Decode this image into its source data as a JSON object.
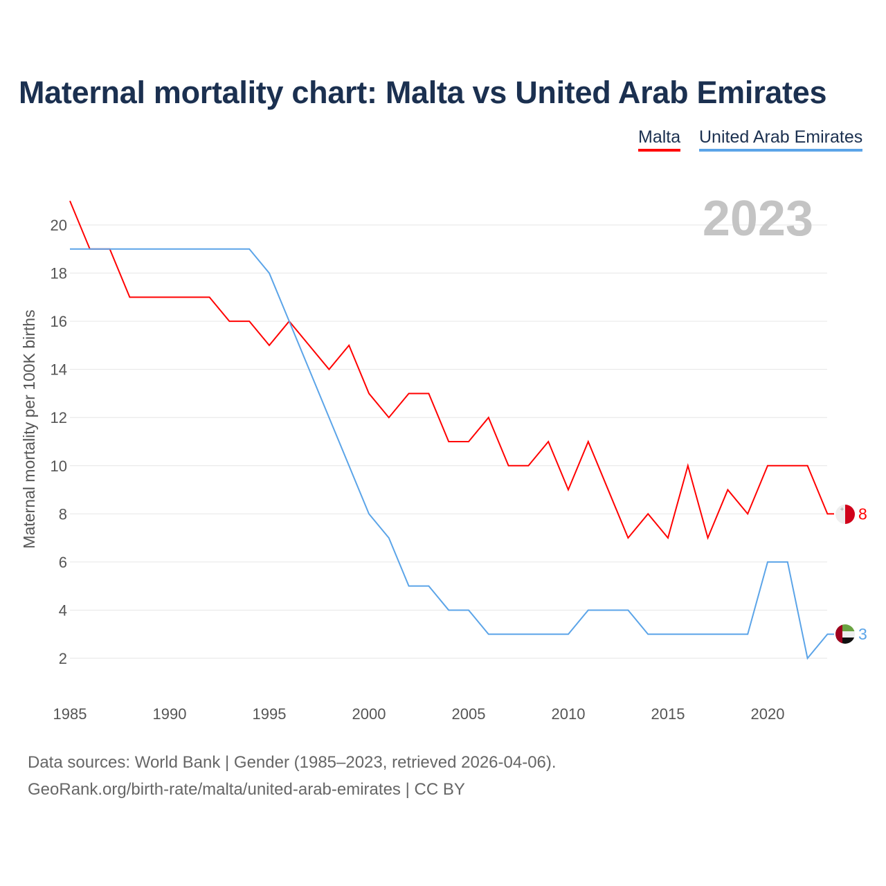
{
  "title": "Maternal mortality chart: Malta vs United Arab Emirates",
  "legend": [
    "Malta",
    "United Arab Emirates"
  ],
  "sources": {
    "line1": "Data sources: World Bank | Gender (1985–2023, retrieved 2026-04-06).",
    "line2": "GeoRank.org/birth-rate/malta/united-arab-emirates | CC BY"
  },
  "chart_data": {
    "type": "line",
    "title": "Maternal mortality chart: Malta vs United Arab Emirates",
    "year_label": "2023",
    "xlabel": "",
    "ylabel": "Maternal mortality per 100K births",
    "xlim": [
      1985,
      2023
    ],
    "ylim": [
      2,
      20
    ],
    "xticks": [
      1985,
      1990,
      1995,
      2000,
      2005,
      2010,
      2015,
      2020
    ],
    "yticks": [
      2,
      4,
      6,
      8,
      10,
      12,
      14,
      16,
      18,
      20
    ],
    "grid": true,
    "legend_position": "top-right",
    "x": [
      1985,
      1986,
      1987,
      1988,
      1989,
      1990,
      1991,
      1992,
      1993,
      1994,
      1995,
      1996,
      1997,
      1998,
      1999,
      2000,
      2001,
      2002,
      2003,
      2004,
      2005,
      2006,
      2007,
      2008,
      2009,
      2010,
      2011,
      2012,
      2013,
      2014,
      2015,
      2016,
      2017,
      2018,
      2019,
      2020,
      2021,
      2022,
      2023
    ],
    "series": [
      {
        "name": "Malta",
        "color": "#ff0000",
        "end_label": "8",
        "values": [
          21,
          19,
          19,
          17,
          17,
          17,
          17,
          17,
          16,
          16,
          15,
          16,
          15,
          14,
          15,
          13,
          12,
          13,
          13,
          11,
          11,
          12,
          10,
          10,
          11,
          9,
          11,
          9,
          7,
          8,
          7,
          10,
          7,
          9,
          8,
          10,
          10,
          10,
          8
        ]
      },
      {
        "name": "United Arab Emirates",
        "color": "#5ba4e8",
        "end_label": "3",
        "values": [
          19,
          19,
          19,
          19,
          19,
          19,
          19,
          19,
          19,
          19,
          18,
          16,
          14,
          12,
          10,
          8,
          7,
          5,
          5,
          4,
          4,
          3,
          3,
          3,
          3,
          3,
          4,
          4,
          4,
          3,
          3,
          3,
          3,
          3,
          3,
          6,
          6,
          2,
          3
        ]
      }
    ]
  }
}
